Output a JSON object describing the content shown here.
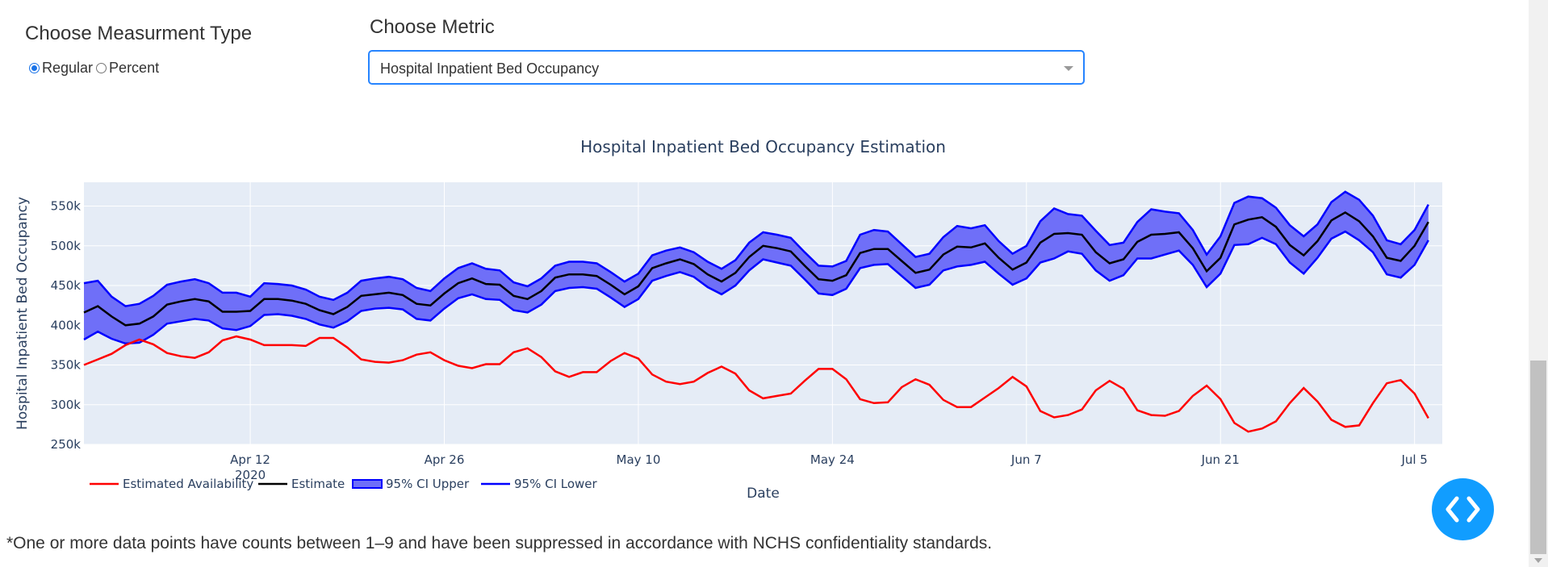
{
  "controls": {
    "measurement_title": "Choose Measurment Type",
    "radio_options": [
      {
        "label": "Regular",
        "checked": true
      },
      {
        "label": "Percent",
        "checked": false
      }
    ],
    "metric_title": "Choose Metric",
    "metric_selected": "Hospital Inpatient Bed Occupancy"
  },
  "footnote": "*One or more data points have counts between 1–9 and have been suppressed in accordance with NCHS confidentiality standards.",
  "icons": {
    "code_button": "code-icon",
    "scroll_down": "chevron-down-icon"
  },
  "chart_data": {
    "type": "line",
    "title": "Hospital Inpatient Bed Occupancy Estimation",
    "xlabel": "Date",
    "ylabel": "Hospital Inpatient Bed Occupancy",
    "x_start": "2020-03-31",
    "x_end": "2020-07-07",
    "x_ticks": [
      {
        "date": "2020-04-12",
        "label": "Apr 12",
        "sublabel": "2020"
      },
      {
        "date": "2020-04-26",
        "label": "Apr 26"
      },
      {
        "date": "2020-05-10",
        "label": "May 10"
      },
      {
        "date": "2020-05-24",
        "label": "May 24"
      },
      {
        "date": "2020-06-07",
        "label": "Jun 7"
      },
      {
        "date": "2020-06-21",
        "label": "Jun 21"
      },
      {
        "date": "2020-07-05",
        "label": "Jul 5"
      }
    ],
    "ylim": [
      250000,
      580000
    ],
    "y_ticks": [
      {
        "value": 250000,
        "label": "250k"
      },
      {
        "value": 300000,
        "label": "300k"
      },
      {
        "value": 350000,
        "label": "350k"
      },
      {
        "value": 400000,
        "label": "400k"
      },
      {
        "value": 450000,
        "label": "450k"
      },
      {
        "value": 500000,
        "label": "500k"
      },
      {
        "value": 550000,
        "label": "550k"
      }
    ],
    "grid": true,
    "legend_position": "bottom-left",
    "colors": {
      "plot_bg": "#e5ecf6",
      "availability": "#ff0000",
      "estimate": "#000000",
      "ci_fill": "#6f6ff8",
      "ci_line": "#0000ff"
    },
    "series": [
      {
        "name": "Estimated Availability",
        "values": [
          350000,
          357000,
          364000,
          375000,
          382000,
          376000,
          365000,
          361000,
          359000,
          366000,
          381000,
          386000,
          382000,
          375000,
          375000,
          375000,
          374000,
          384000,
          384000,
          372000,
          357000,
          354000,
          353000,
          356000,
          363000,
          366000,
          356000,
          349000,
          346000,
          351000,
          351000,
          366000,
          371000,
          360000,
          342000,
          335000,
          341000,
          341000,
          355000,
          365000,
          358000,
          338000,
          329000,
          326000,
          329000,
          340000,
          348000,
          339000,
          318000,
          308000,
          311000,
          314000,
          330000,
          345000,
          345000,
          332000,
          307000,
          302000,
          303000,
          322000,
          332000,
          325000,
          306000,
          297000,
          297000,
          309000,
          321000,
          335000,
          323000,
          292000,
          284000,
          287000,
          294000,
          318000,
          330000,
          320000,
          293000,
          287000,
          286000,
          292000,
          311000,
          324000,
          307000,
          277000,
          266000,
          270000,
          279000,
          302000,
          321000,
          304000,
          281000,
          272000,
          274000,
          302000,
          327000,
          331000,
          314000,
          283000
        ]
      },
      {
        "name": "Estimate",
        "values": [
          416000,
          424000,
          411000,
          400000,
          402000,
          411000,
          426000,
          430000,
          433000,
          430000,
          417000,
          417000,
          418000,
          433000,
          433000,
          431000,
          427000,
          419000,
          414000,
          423000,
          437000,
          439000,
          441000,
          438000,
          427000,
          425000,
          440000,
          453000,
          459000,
          452000,
          451000,
          437000,
          433000,
          443000,
          460000,
          464000,
          464000,
          462000,
          451000,
          439000,
          449000,
          472000,
          478000,
          483000,
          477000,
          464000,
          455000,
          466000,
          486000,
          500000,
          497000,
          493000,
          475000,
          458000,
          456000,
          463000,
          491000,
          496000,
          496000,
          481000,
          466000,
          470000,
          489000,
          499000,
          498000,
          503000,
          485000,
          470000,
          479000,
          504000,
          515000,
          516000,
          514000,
          492000,
          478000,
          483000,
          505000,
          514000,
          515000,
          517000,
          497000,
          468000,
          485000,
          527000,
          533000,
          536000,
          524000,
          501000,
          488000,
          506000,
          532000,
          542000,
          531000,
          512000,
          485000,
          481000,
          500000,
          530000
        ]
      },
      {
        "name": "95% CI Upper",
        "values": [
          453000,
          456000,
          436000,
          424000,
          427000,
          437000,
          451000,
          455000,
          458000,
          453000,
          441000,
          441000,
          436000,
          453000,
          452000,
          450000,
          445000,
          436000,
          432000,
          441000,
          456000,
          459000,
          461000,
          458000,
          447000,
          443000,
          459000,
          472000,
          478000,
          471000,
          469000,
          454000,
          449000,
          459000,
          475000,
          480000,
          480000,
          478000,
          467000,
          455000,
          465000,
          488000,
          494000,
          498000,
          492000,
          480000,
          471000,
          482000,
          504000,
          517000,
          514000,
          510000,
          492000,
          475000,
          474000,
          481000,
          514000,
          520000,
          518000,
          502000,
          486000,
          490000,
          511000,
          525000,
          522000,
          526000,
          506000,
          490000,
          500000,
          531000,
          547000,
          540000,
          538000,
          519000,
          501000,
          504000,
          530000,
          546000,
          543000,
          541000,
          520000,
          489000,
          512000,
          554000,
          562000,
          560000,
          548000,
          526000,
          512000,
          527000,
          555000,
          568000,
          558000,
          538000,
          507000,
          502000,
          520000,
          552000
        ]
      },
      {
        "name": "95% CI Lower",
        "values": [
          382000,
          392000,
          383000,
          377000,
          378000,
          388000,
          402000,
          405000,
          408000,
          406000,
          396000,
          394000,
          399000,
          413000,
          414000,
          412000,
          408000,
          401000,
          397000,
          405000,
          418000,
          421000,
          422000,
          420000,
          408000,
          406000,
          421000,
          434000,
          439000,
          433000,
          432000,
          419000,
          416000,
          426000,
          443000,
          447000,
          448000,
          446000,
          435000,
          423000,
          433000,
          456000,
          462000,
          467000,
          461000,
          448000,
          439000,
          450000,
          469000,
          483000,
          479000,
          475000,
          458000,
          440000,
          438000,
          446000,
          472000,
          476000,
          477000,
          462000,
          447000,
          451000,
          469000,
          474000,
          476000,
          480000,
          465000,
          451000,
          459000,
          479000,
          484000,
          493000,
          490000,
          469000,
          456000,
          463000,
          484000,
          484000,
          489000,
          494000,
          476000,
          448000,
          465000,
          501000,
          502000,
          510000,
          502000,
          479000,
          465000,
          485000,
          509000,
          518000,
          507000,
          492000,
          464000,
          460000,
          476000,
          507000
        ]
      }
    ]
  }
}
